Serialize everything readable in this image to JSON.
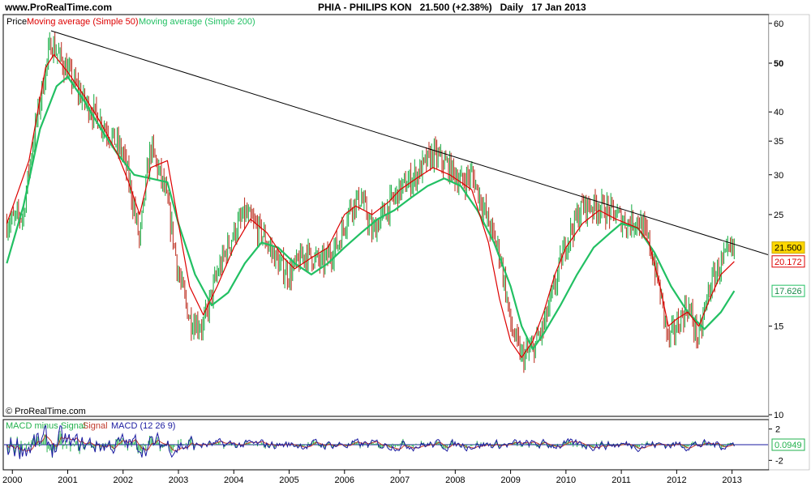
{
  "site": {
    "title": "www.ProRealTime.com",
    "copyright": "© ProRealTime.com"
  },
  "header": {
    "ticker": "PHIA - PHILIPS KON",
    "price": "21.500 (+2.38%)",
    "period": "Daily",
    "date": "17 Jan 2013"
  },
  "chart_data": [
    {
      "type": "line",
      "legend": [
        "Price",
        "Moving average (Simple 50)",
        "Moving average (Simple 200)"
      ],
      "log_scale": true,
      "ylim": [
        10,
        62
      ],
      "y_ticks": [
        "60",
        "50",
        "40",
        "35",
        "30",
        "25",
        "15",
        "10"
      ],
      "x_ticks": [
        "2000",
        "2001",
        "2002",
        "2003",
        "2004",
        "2005",
        "2006",
        "2007",
        "2008",
        "2009",
        "2010",
        "2011",
        "2012",
        "2013"
      ],
      "price_labels": {
        "last": "21.500",
        "sma50": "20.172",
        "sma200": "17.626"
      },
      "colors": {
        "price_up": "#22b14c",
        "price_down": "#c0392b",
        "sma50": "#dd0000",
        "sma200": "#22c063",
        "trendline": "#000000",
        "last_label_bg": "#ffd700"
      },
      "series": [
        {
          "name": "Price",
          "x": [
            1999.9,
            2000.2,
            2000.5,
            2000.7,
            2001.0,
            2001.3,
            2001.7,
            2002.0,
            2002.3,
            2002.5,
            2002.75,
            2003.0,
            2003.2,
            2003.45,
            2003.7,
            2004.0,
            2004.2,
            2004.5,
            2004.8,
            2005.0,
            2005.3,
            2005.6,
            2005.9,
            2006.1,
            2006.3,
            2006.5,
            2006.7,
            2007.0,
            2007.3,
            2007.6,
            2007.9,
            2008.1,
            2008.3,
            2008.6,
            2008.8,
            2009.0,
            2009.2,
            2009.4,
            2009.6,
            2009.8,
            2010.0,
            2010.3,
            2010.6,
            2010.9,
            2011.1,
            2011.3,
            2011.5,
            2011.7,
            2011.85,
            2012.0,
            2012.2,
            2012.4,
            2012.6,
            2012.8,
            2013.04
          ],
          "values": [
            24,
            25,
            42,
            55,
            48,
            42,
            37,
            33,
            22,
            34,
            28,
            19,
            15.5,
            15,
            19,
            23,
            25,
            23,
            20,
            19,
            21,
            20,
            22,
            26,
            27,
            23,
            25,
            28,
            30,
            33,
            31,
            29,
            30,
            24,
            21,
            15,
            13,
            13.5,
            15,
            18,
            22,
            26,
            26,
            25,
            24,
            24.5,
            22,
            17.5,
            14,
            15,
            16.5,
            14,
            18,
            20,
            21.5
          ]
        },
        {
          "name": "Moving average (Simple 50)",
          "x": [
            1999.9,
            2000.3,
            2000.6,
            2000.75,
            2001.0,
            2001.3,
            2001.6,
            2001.9,
            2002.1,
            2002.3,
            2002.5,
            2002.8,
            2003.0,
            2003.2,
            2003.45,
            2003.7,
            2004.0,
            2004.3,
            2004.6,
            2004.9,
            2005.1,
            2005.4,
            2005.7,
            2006.0,
            2006.2,
            2006.5,
            2006.8,
            2007.0,
            2007.3,
            2007.6,
            2007.9,
            2008.1,
            2008.3,
            2008.6,
            2008.8,
            2009.0,
            2009.2,
            2009.4,
            2009.6,
            2009.8,
            2010.0,
            2010.3,
            2010.6,
            2010.9,
            2011.1,
            2011.3,
            2011.5,
            2011.7,
            2011.85,
            2012.0,
            2012.2,
            2012.4,
            2012.6,
            2012.8,
            2013.04
          ],
          "values": [
            24,
            32,
            49,
            52,
            48,
            43,
            38,
            33,
            29,
            25,
            31,
            32,
            24,
            18,
            15.8,
            18,
            21.5,
            24.5,
            23,
            20.5,
            19.5,
            20.5,
            21.5,
            25,
            26,
            25,
            26.5,
            28,
            29.5,
            31,
            30,
            29,
            28,
            22,
            17,
            14,
            13,
            14,
            16,
            19,
            21.5,
            24,
            25.5,
            24.5,
            24,
            23.5,
            22,
            18,
            15,
            15.5,
            16,
            15,
            17,
            19,
            20.172
          ]
        },
        {
          "name": "Moving average (Simple 200)",
          "x": [
            1999.9,
            2000.2,
            2000.5,
            2000.8,
            2001.0,
            2001.3,
            2001.6,
            2001.9,
            2002.2,
            2002.5,
            2002.8,
            2003.0,
            2003.3,
            2003.6,
            2003.9,
            2004.2,
            2004.5,
            2004.8,
            2005.1,
            2005.4,
            2005.7,
            2006.0,
            2006.3,
            2006.6,
            2006.9,
            2007.2,
            2007.5,
            2007.8,
            2008.1,
            2008.4,
            2008.7,
            2009.0,
            2009.2,
            2009.4,
            2009.6,
            2009.9,
            2010.2,
            2010.5,
            2010.8,
            2011.0,
            2011.3,
            2011.6,
            2011.9,
            2012.2,
            2012.5,
            2012.8,
            2013.04
          ],
          "values": [
            20,
            26,
            37,
            45,
            47,
            42,
            37,
            33,
            30,
            29.5,
            29,
            24,
            19,
            16.5,
            17.5,
            20,
            22,
            21.5,
            20,
            19,
            20,
            21.5,
            23,
            24.5,
            25.5,
            27,
            28.5,
            29.5,
            28.5,
            25.5,
            22,
            18,
            15,
            13.5,
            14.5,
            16.5,
            19,
            21.5,
            23,
            24,
            23.5,
            21,
            18,
            16,
            14.8,
            16,
            17.626
          ]
        },
        {
          "name": "Trendline",
          "x": [
            2000.7,
            2013.65
          ],
          "values": [
            58,
            20.8
          ]
        }
      ]
    },
    {
      "type": "line",
      "legend": [
        "MACD minus Signal",
        "Signal",
        "MACD (12 26 9)"
      ],
      "ylim": [
        -3,
        3
      ],
      "y_ticks": [
        "2",
        "-2"
      ],
      "price_labels": {
        "last": "0.0949"
      },
      "colors": {
        "macd_minus_signal": "#22b14c",
        "signal": "#c0392b",
        "macd": "#1a1aa0"
      }
    }
  ]
}
